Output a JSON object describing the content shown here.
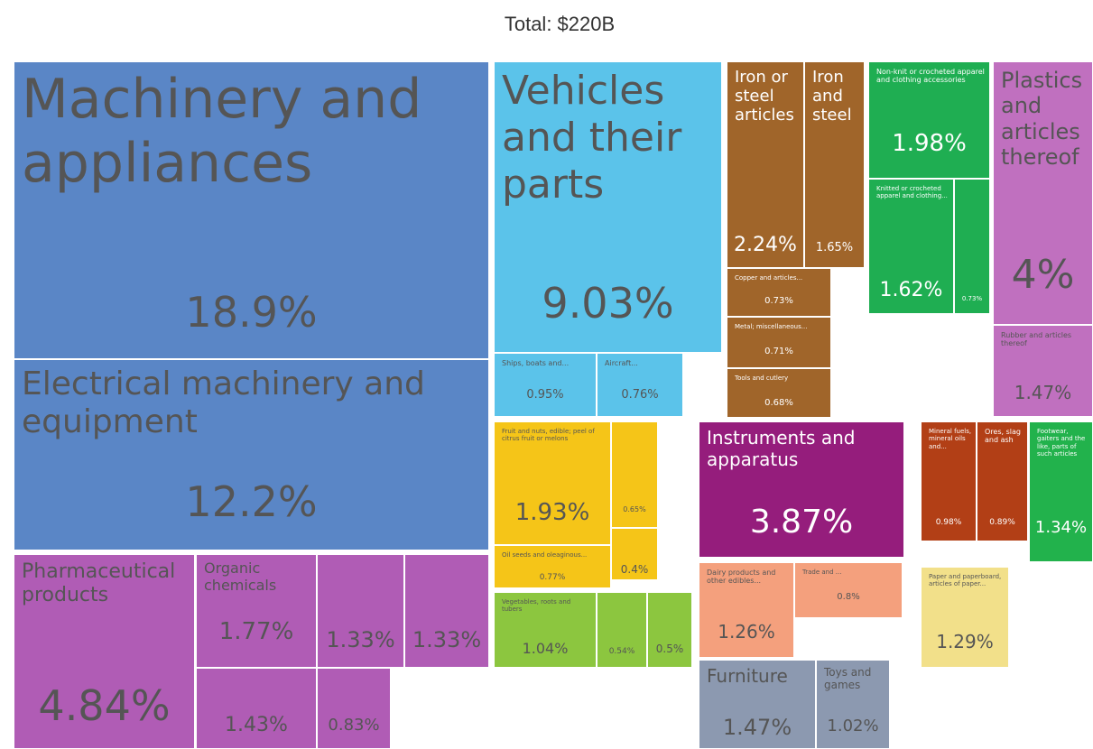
{
  "chart_data": {
    "type": "treemap",
    "title": "Total: $220B",
    "categories": [
      "Machinery and appliances",
      "Electrical machinery and equipment",
      "Pharmaceutical products",
      "Organic chemicals",
      null,
      null,
      null,
      null,
      "Vehicles and their parts",
      "Ships, boats and...",
      "Aircraft...",
      "Iron or steel articles",
      "Iron and steel",
      "Copper and articles...",
      "Metal; miscellaneous...",
      "Tools and cutlery",
      "Non-knit or crocheted apparel and clothing accessories",
      "Knitted or crocheted apparel and clothing...",
      null,
      "Plastics and articles thereof",
      "Rubber and articles thereof",
      "Fruit and nuts, edible; peel of citrus fruit or melons",
      null,
      null,
      "Oil seeds and oleaginous...",
      "Vegetables, roots and tubers",
      null,
      null,
      "Instruments and apparatus",
      "Dairy products and other edibles...",
      "Trade and ...",
      "Furniture",
      "Toys and games",
      "Mineral fuels, mineral oils and...",
      "Ores, slag and ash",
      "Footwear, gaiters and the like, parts of such articles",
      "Paper and paperboard, articles of paper..."
    ],
    "values": [
      18.9,
      12.2,
      4.84,
      1.77,
      1.33,
      1.33,
      1.43,
      0.83,
      9.03,
      0.95,
      0.76,
      2.24,
      1.65,
      0.73,
      0.71,
      0.68,
      1.98,
      1.62,
      0.73,
      4,
      1.47,
      1.93,
      0.65,
      0.4,
      0.77,
      1.04,
      0.54,
      0.5,
      3.87,
      1.26,
      0.8,
      1.47,
      1.02,
      0.98,
      0.89,
      1.34,
      1.29
    ],
    "value_labels": [
      "18.9%",
      "12.2%",
      "4.84%",
      "1.77%",
      "1.33%",
      "1.33%",
      "1.43%",
      "0.83%",
      "9.03%",
      "0.95%",
      "0.76%",
      "2.24%",
      "1.65%",
      "0.73%",
      "0.71%",
      "0.68%",
      "1.98%",
      "1.62%",
      "0.73%",
      "4%",
      "1.47%",
      "1.93%",
      "0.65%",
      "0.4%",
      "0.77%",
      "1.04%",
      "0.54%",
      "0.5%",
      "3.87%",
      "1.26%",
      "0.8%",
      "1.47%",
      "1.02%",
      "0.98%",
      "0.89%",
      "1.34%",
      "1.29%"
    ],
    "colors": [
      "#5a86c6",
      "#5a86c6",
      "#b05cb5",
      "#b05cb5",
      "#b05cb5",
      "#b05cb5",
      "#b05cb5",
      "#b05cb5",
      "#5bc3ea",
      "#5bc3ea",
      "#5bc3ea",
      "#a0652a",
      "#a0652a",
      "#a0652a",
      "#a0652a",
      "#a0652a",
      "#1fae52",
      "#1fae52",
      "#1fae52",
      "#c070bf",
      "#c070bf",
      "#f5c518",
      "#f5c518",
      "#f5c518",
      "#f5c518",
      "#8cc63f",
      "#8cc63f",
      "#8cc63f",
      "#951d7c",
      "#f4a07d",
      "#f4a07d",
      "#8c99b0",
      "#8c99b0",
      "#b23f16",
      "#b23f16",
      "#22b24c",
      "#f2e08a"
    ]
  }
}
